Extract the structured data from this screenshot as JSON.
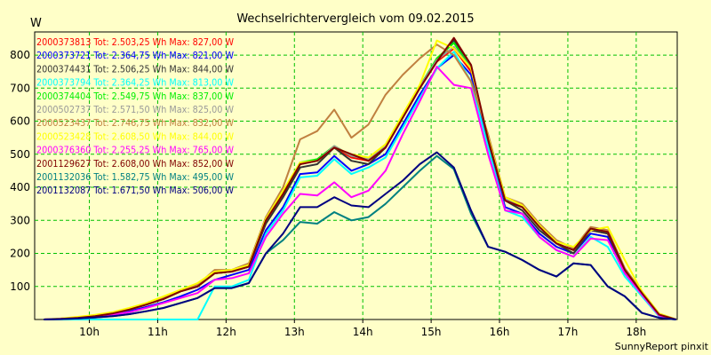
{
  "chart_data": {
    "type": "line",
    "title": "Wechselrichtervergleich vom 09.02.2015",
    "ylabel": "W",
    "xlabel": "",
    "footer": "SunnyReport pinxit",
    "x_tick_labels": [
      "10h",
      "11h",
      "12h",
      "13h",
      "14h",
      "15h",
      "16h",
      "17h",
      "18h"
    ],
    "x_tick_hours": [
      10,
      11,
      12,
      13,
      14,
      15,
      16,
      17,
      18
    ],
    "y_ticks": [
      100,
      200,
      300,
      400,
      500,
      600,
      700,
      800
    ],
    "xlim_hours": [
      9.2,
      18.6
    ],
    "ylim": [
      0,
      870
    ],
    "grid": true,
    "legend_position": "top-left",
    "x": [
      "09:20",
      "09:35",
      "09:50",
      "10:05",
      "10:20",
      "10:35",
      "10:50",
      "11:05",
      "11:20",
      "11:35",
      "11:50",
      "12:05",
      "12:20",
      "12:35",
      "12:50",
      "13:05",
      "13:20",
      "13:35",
      "13:50",
      "14:05",
      "14:20",
      "14:35",
      "14:50",
      "15:05",
      "15:20",
      "15:35",
      "15:50",
      "16:05",
      "16:20",
      "16:35",
      "16:50",
      "17:05",
      "17:20",
      "17:35",
      "17:50",
      "18:05",
      "18:20",
      "18:35"
    ],
    "series": [
      {
        "name": "2000373813",
        "label": "2000373813 Tot: 2.503,25 Wh Max: 827,00 W",
        "color": "#ff0000",
        "values": [
          0,
          2,
          5,
          10,
          18,
          30,
          45,
          62,
          85,
          100,
          140,
          145,
          160,
          300,
          380,
          470,
          480,
          520,
          490,
          480,
          520,
          610,
          700,
          780,
          820,
          750,
          540,
          360,
          340,
          280,
          230,
          210,
          270,
          260,
          150,
          80,
          15,
          0
        ]
      },
      {
        "name": "2000373721",
        "label": "2000373721 Tot: 2.364,75 Wh Max: 821,00 W",
        "color": "#0000ff",
        "values": [
          0,
          2,
          4,
          8,
          15,
          25,
          38,
          52,
          70,
          90,
          120,
          135,
          150,
          270,
          340,
          440,
          445,
          495,
          450,
          470,
          500,
          590,
          680,
          760,
          800,
          740,
          520,
          340,
          320,
          260,
          220,
          200,
          260,
          250,
          140,
          75,
          12,
          0
        ]
      },
      {
        "name": "2000374431",
        "label": "2000374431 Tot: 2.506,25 Wh Max: 844,00 W",
        "color": "#333333",
        "values": [
          0,
          2,
          5,
          10,
          18,
          30,
          45,
          62,
          85,
          100,
          140,
          145,
          160,
          290,
          370,
          460,
          470,
          520,
          480,
          470,
          520,
          610,
          700,
          780,
          845,
          770,
          540,
          360,
          330,
          270,
          230,
          200,
          270,
          260,
          145,
          78,
          15,
          0
        ]
      },
      {
        "name": "2000373794",
        "label": "2000373794 Tot: 2.364,25 Wh Max: 813,00 W",
        "color": "#00ffff",
        "values": [
          0,
          0,
          0,
          0,
          0,
          0,
          0,
          0,
          0,
          0,
          100,
          100,
          120,
          260,
          330,
          430,
          435,
          485,
          440,
          460,
          490,
          580,
          670,
          760,
          810,
          720,
          520,
          330,
          310,
          250,
          210,
          190,
          250,
          220,
          130,
          70,
          10,
          0
        ]
      },
      {
        "name": "2000374404",
        "label": "2000374404 Tot: 2.549,75 Wh Max: 837,00 W",
        "color": "#00ee00",
        "values": [
          0,
          2,
          5,
          10,
          18,
          30,
          45,
          62,
          85,
          100,
          140,
          145,
          160,
          300,
          385,
          475,
          485,
          525,
          495,
          485,
          525,
          610,
          705,
          790,
          837,
          760,
          545,
          365,
          340,
          280,
          230,
          210,
          275,
          265,
          150,
          80,
          16,
          0
        ]
      },
      {
        "name": "2000502737",
        "label": "2000502737 Tot: 2.571,50 Wh Max: 825,00 W",
        "color": "#999999",
        "values": [
          0,
          2,
          5,
          10,
          18,
          30,
          45,
          62,
          85,
          100,
          140,
          145,
          160,
          300,
          385,
          470,
          480,
          525,
          495,
          485,
          525,
          610,
          705,
          785,
          825,
          760,
          545,
          365,
          340,
          280,
          230,
          210,
          275,
          265,
          150,
          80,
          16,
          0
        ]
      },
      {
        "name": "2000523437",
        "label": "2000523437 Tot: 2.746,75 Wh Max: 832,00 W",
        "color": "#c08040",
        "values": [
          0,
          3,
          6,
          12,
          20,
          32,
          48,
          65,
          88,
          105,
          150,
          150,
          170,
          310,
          400,
          545,
          570,
          635,
          550,
          590,
          680,
          740,
          790,
          832,
          800,
          720,
          560,
          370,
          350,
          290,
          240,
          215,
          280,
          270,
          155,
          85,
          18,
          0
        ]
      },
      {
        "name": "2000523428",
        "label": "2000523428 Tot: 2.608,50 Wh Max: 844,00 W",
        "color": "#ffff00",
        "values": [
          0,
          3,
          8,
          14,
          22,
          35,
          50,
          70,
          90,
          110,
          145,
          150,
          165,
          305,
          390,
          475,
          480,
          520,
          500,
          490,
          530,
          620,
          710,
          844,
          820,
          760,
          550,
          370,
          345,
          285,
          235,
          220,
          270,
          280,
          180,
          85,
          18,
          0
        ]
      },
      {
        "name": "2000376360",
        "label": "2000376360 Tot: 2.255,25 Wh Max: 765,00 W",
        "color": "#ff00ff",
        "values": [
          0,
          2,
          4,
          8,
          14,
          22,
          35,
          50,
          65,
          80,
          120,
          125,
          140,
          250,
          320,
          380,
          375,
          415,
          370,
          390,
          450,
          560,
          660,
          765,
          710,
          700,
          500,
          330,
          320,
          250,
          210,
          190,
          245,
          240,
          140,
          75,
          12,
          0
        ]
      },
      {
        "name": "2001129627",
        "label": "2001129627 Tot: 2.608,00 Wh Max: 852,00 W",
        "color": "#800000",
        "values": [
          0,
          2,
          5,
          10,
          18,
          30,
          45,
          62,
          85,
          100,
          140,
          145,
          160,
          300,
          380,
          470,
          480,
          520,
          500,
          480,
          520,
          610,
          700,
          780,
          852,
          770,
          545,
          360,
          340,
          280,
          230,
          210,
          275,
          265,
          150,
          80,
          15,
          0
        ]
      },
      {
        "name": "2001132036",
        "label": "2001132036 Tot: 1.582,75 Wh Max: 495,00 W",
        "color": "#008080",
        "values": [
          0,
          1,
          3,
          6,
          10,
          16,
          25,
          35,
          50,
          65,
          95,
          95,
          110,
          200,
          240,
          295,
          290,
          325,
          300,
          310,
          350,
          400,
          450,
          495,
          455,
          320,
          220,
          205,
          180,
          150,
          130,
          170,
          165,
          100,
          70,
          20,
          5,
          0
        ]
      },
      {
        "name": "2001132087",
        "label": "2001132087 Tot: 1.671,50 Wh Max: 506,00 W",
        "color": "#000080",
        "values": [
          0,
          1,
          3,
          6,
          10,
          16,
          25,
          35,
          50,
          65,
          95,
          95,
          110,
          200,
          260,
          340,
          340,
          370,
          345,
          340,
          380,
          420,
          470,
          506,
          460,
          330,
          220,
          205,
          180,
          150,
          130,
          170,
          165,
          100,
          70,
          20,
          5,
          0
        ]
      }
    ]
  }
}
